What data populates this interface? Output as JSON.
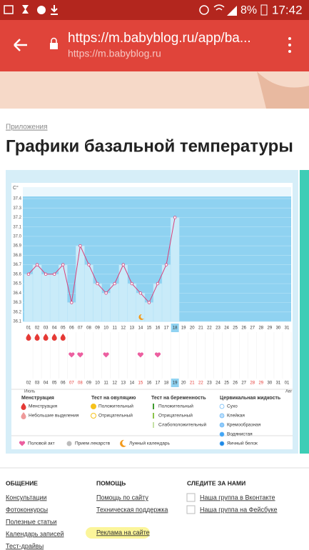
{
  "status_bar": {
    "battery": "8%",
    "time": "17:42"
  },
  "browser": {
    "url": "https://m.babyblog.ru/app/ba...",
    "domain": "https://m.babyblog.ru"
  },
  "breadcrumb": "Приложения",
  "title": "Графики базальной температуры",
  "chart_data": {
    "type": "line",
    "y_unit": "C°",
    "color": "#d8407a",
    "fill": "#c9ebf9",
    "highlight": 17,
    "categories": [
      "01",
      "02",
      "03",
      "04",
      "05",
      "06",
      "07",
      "08",
      "09",
      "10",
      "11",
      "12",
      "13",
      "14",
      "15",
      "16",
      "17",
      "18",
      "19",
      "20",
      "21",
      "22",
      "23",
      "24",
      "25",
      "26",
      "27",
      "28",
      "29",
      "30",
      "31"
    ],
    "values": [
      36.6,
      36.7,
      36.6,
      36.6,
      36.7,
      36.3,
      36.9,
      36.7,
      36.5,
      36.4,
      36.5,
      36.7,
      36.5,
      36.4,
      36.3,
      36.5,
      36.7,
      37.2,
      null,
      null,
      null,
      null,
      null,
      null,
      null,
      null,
      null,
      null,
      null,
      null,
      null
    ],
    "ylim": [
      36.1,
      37.4
    ],
    "yticks": [
      36.1,
      36.2,
      36.3,
      36.4,
      36.5,
      36.6,
      36.7,
      36.8,
      36.9,
      {
        "value": 37,
        "label": "37.0"
      },
      37.1,
      37.2,
      37.3,
      37.4
    ],
    "menstruation_days": [
      0,
      1,
      2,
      3,
      4
    ],
    "intercourse_days": [
      5,
      6,
      9,
      13,
      15
    ],
    "moon_days": [
      13
    ],
    "dates2": [
      "02",
      "03",
      "04",
      "05",
      "06",
      "07",
      "08",
      "09",
      "10",
      "11",
      "12",
      "13",
      "14",
      "15",
      "16",
      "17",
      "18",
      "19",
      "20",
      "21",
      "22",
      "23",
      "24",
      "25",
      "26",
      "27",
      "28",
      "29",
      "30",
      "31",
      "01"
    ],
    "weekend2": [
      5,
      6,
      13,
      19,
      20,
      26,
      27
    ],
    "highlight2": 17,
    "month_start": "Июль",
    "month_end": "Авг"
  },
  "legend": {
    "groups": [
      {
        "title": "Менструация",
        "items": [
          "Менструация",
          "Небольшие выделения"
        ]
      },
      {
        "title": "Тест на овуляцию",
        "items": [
          "Положительный",
          "Отрицательный"
        ]
      },
      {
        "title": "Тест на беременность",
        "items": [
          "Положительный",
          "Отрицательный",
          "Слабоположительный"
        ]
      },
      {
        "title": "Цервикальная жидкость",
        "items": [
          "Сухо",
          "Клейкая",
          "Кремообразная",
          "Водянистая",
          "Яичный белок"
        ]
      }
    ],
    "extra": [
      "Половой акт",
      "Прием лекарств",
      "Лунный календарь"
    ]
  },
  "footer": {
    "columns": [
      {
        "title": "ОБЩЕНИЕ",
        "links": [
          "Консультации",
          "Фотоконкурсы",
          "Полезные статьи",
          "Календарь записей",
          "Тест-драйвы"
        ]
      },
      {
        "title": "ПОМОЩЬ",
        "links": [
          "Помощь по сайту",
          "Техническая поддержка",
          "Реклама на сайте"
        ]
      },
      {
        "title": "СЛЕДИТЕ ЗА НАМИ",
        "links": [
          "Наша группа в Вконтакте",
          "Наша группа на Фейсбуке"
        ]
      }
    ]
  }
}
